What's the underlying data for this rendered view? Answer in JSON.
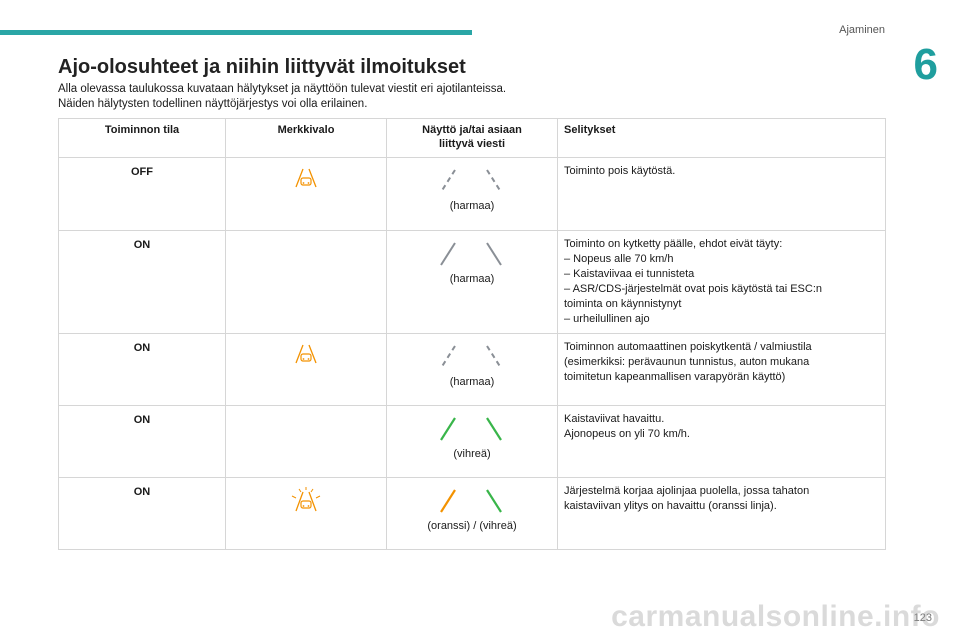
{
  "header": {
    "section": "Ajaminen",
    "chapter": "6"
  },
  "title": "Ajo-olosuhteet ja niihin liittyvät ilmoitukset",
  "intro": [
    "Alla olevassa taulukossa kuvataan hälytykset ja näyttöön tulevat viestit eri ajotilanteissa.",
    "Näiden hälytysten todellinen näyttöjärjestys voi olla erilainen."
  ],
  "table": {
    "headers": {
      "state": "Toiminnon tila",
      "lamp": "Merkkivalo",
      "display_1": "Näyttö ja/tai asiaan",
      "display_2": "liittyvä viesti",
      "explanation": "Selitykset"
    },
    "rows": [
      {
        "state": "OFF",
        "lamp_icon": "lane-keep-off-orange-icon",
        "lines": "grey-dashed-icon",
        "caption": "(harmaa)",
        "expl": [
          " Toiminto pois käytöstä."
        ]
      },
      {
        "state": "ON",
        "lamp_icon": "",
        "lines": "grey-solid-icon",
        "caption": "(harmaa)",
        "expl": [
          "Toiminto on kytketty päälle, ehdot eivät täyty:",
          "–  Nopeus alle 70 km/h",
          "–  Kaistaviivaa ei tunnisteta",
          "–  ASR/CDS-järjestelmät ovat pois käytöstä tai ESC:n",
          "toiminta on käynnistynyt",
          "–  urheilullinen ajo"
        ]
      },
      {
        "state": "ON",
        "lamp_icon": "lane-keep-off-orange-icon",
        "lines": "grey-dashed-icon",
        "caption": "(harmaa)",
        "expl": [
          "Toiminnon automaattinen poiskytkentä / valmiustila",
          "(esimerkiksi: perävaunun tunnistus, auton mukana",
          "toimitetun kapeanmallisen varapyörän käyttö)"
        ]
      },
      {
        "state": "ON",
        "lamp_icon": "",
        "lines": "green-solid-icon",
        "caption": "(vihreä)",
        "expl": [
          "Kaistaviivat havaittu.",
          "Ajonopeus on yli 70 km/h."
        ]
      },
      {
        "state": "ON",
        "lamp_icon": "lane-keep-active-orange-icon",
        "lines": "orange-green-icon",
        "caption": "(oranssi) / (vihreä)",
        "expl": [
          "Järjestelmä korjaa ajolinjaa puolella, jossa tahaton",
          "kaistaviivan ylitys on havaittu (oranssi linja)."
        ]
      }
    ]
  },
  "page_number": "123",
  "watermark": "carmanualsonline.info",
  "colors": {
    "accent": "#2aa6a6",
    "grey_line": "#8a8f96",
    "green": "#39b54a",
    "orange": "#f39200"
  }
}
